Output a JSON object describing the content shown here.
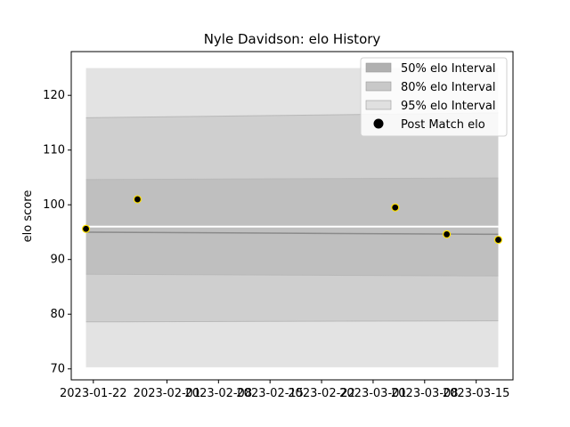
{
  "chart_data": {
    "type": "line",
    "title": "Nyle Davidson: elo History",
    "xlabel": "",
    "ylabel": "elo score",
    "xlim": [
      "2023-01-19",
      "2023-03-20"
    ],
    "ylim": [
      68,
      128
    ],
    "x_ticks": [
      "2023-01-22",
      "2023-02-01",
      "2023-02-08",
      "2023-02-15",
      "2023-02-22",
      "2023-03-01",
      "2023-03-08",
      "2023-03-15"
    ],
    "y_ticks": [
      70,
      80,
      90,
      100,
      110,
      120
    ],
    "grid": false,
    "legend_placement": "top-right",
    "legend": [
      {
        "label": "50% elo Interval",
        "color": "#b0b0b0",
        "kind": "patch"
      },
      {
        "label": "80% elo Interval",
        "color": "#c8c8c8",
        "kind": "patch"
      },
      {
        "label": "95% elo Interval",
        "color": "#e0e0e0",
        "kind": "patch"
      },
      {
        "label": "Post Match elo",
        "color": "#000000",
        "kind": "marker"
      }
    ],
    "interval_dates": [
      "2023-01-21",
      "2023-03-18"
    ],
    "band_95": {
      "lower": [
        70.3,
        70.3
      ],
      "upper": [
        125.0,
        125.0
      ],
      "color": "#e3e3e3"
    },
    "band_80": {
      "lower": [
        78.6,
        78.8
      ],
      "upper": [
        115.9,
        116.8
      ],
      "color": "#cfcfcf"
    },
    "band_50": {
      "lower": [
        87.3,
        87.0
      ],
      "upper": [
        104.6,
        104.9
      ],
      "color": "#bfbfbf"
    },
    "mean_line": {
      "values": [
        96.0,
        96.0
      ],
      "color": "#ffffff"
    },
    "median_line": {
      "values": [
        95.0,
        94.6
      ],
      "color": "#8a8a8a"
    },
    "points": [
      {
        "date": "2023-01-21",
        "elo": 95.6
      },
      {
        "date": "2023-01-28",
        "elo": 101.0
      },
      {
        "date": "2023-03-04",
        "elo": 99.5
      },
      {
        "date": "2023-03-11",
        "elo": 94.6
      },
      {
        "date": "2023-03-18",
        "elo": 93.6
      }
    ],
    "point_style": {
      "fill": "#000000",
      "edge": "#ffe100"
    }
  }
}
